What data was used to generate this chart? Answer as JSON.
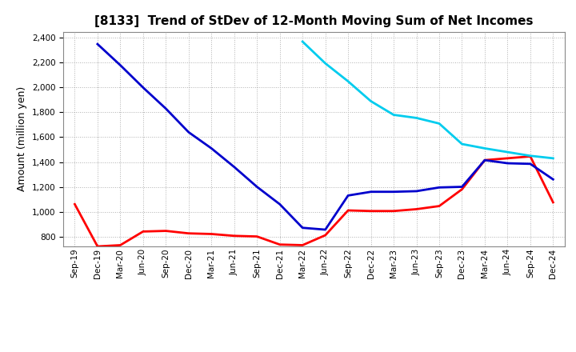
{
  "title": "[8133]  Trend of StDev of 12-Month Moving Sum of Net Incomes",
  "ylabel": "Amount (million yen)",
  "ylim": [
    720,
    2450
  ],
  "yticks": [
    800,
    1000,
    1200,
    1400,
    1600,
    1800,
    2000,
    2200,
    2400
  ],
  "background_color": "#ffffff",
  "grid_color": "#b0b0b0",
  "series": {
    "3years": {
      "color": "#ff0000",
      "x": [
        "Sep-19",
        "Dec-19",
        "Mar-20",
        "Jun-20",
        "Sep-20",
        "Dec-20",
        "Mar-21",
        "Jun-21",
        "Sep-21",
        "Dec-21",
        "Mar-22",
        "Jun-22",
        "Sep-22",
        "Dec-22",
        "Mar-23",
        "Jun-23",
        "Sep-23",
        "Dec-23",
        "Mar-24",
        "Jun-24",
        "Sep-24",
        "Dec-24"
      ],
      "y": [
        1060,
        720,
        730,
        840,
        845,
        825,
        820,
        805,
        800,
        735,
        730,
        810,
        1010,
        1005,
        1005,
        1020,
        1045,
        1180,
        1415,
        1430,
        1445,
        1075
      ]
    },
    "5years": {
      "color": "#0000cc",
      "x": [
        "Dec-19",
        "Mar-20",
        "Jun-20",
        "Sep-20",
        "Dec-20",
        "Mar-21",
        "Jun-21",
        "Sep-21",
        "Dec-21",
        "Mar-22",
        "Jun-22",
        "Sep-22",
        "Dec-22",
        "Mar-23",
        "Jun-23",
        "Sep-23",
        "Dec-23",
        "Mar-24",
        "Jun-24",
        "Sep-24",
        "Dec-24"
      ],
      "y": [
        2350,
        2180,
        2000,
        1830,
        1640,
        1510,
        1360,
        1200,
        1060,
        870,
        855,
        1130,
        1160,
        1160,
        1165,
        1195,
        1200,
        1415,
        1390,
        1385,
        1260
      ]
    },
    "7years": {
      "color": "#00ccee",
      "x": [
        "Mar-22",
        "Jun-22",
        "Sep-22",
        "Dec-22",
        "Mar-23",
        "Jun-23",
        "Sep-23",
        "Dec-23",
        "Mar-24",
        "Jun-24",
        "Sep-24",
        "Dec-24"
      ],
      "y": [
        2370,
        2195,
        2050,
        1890,
        1780,
        1755,
        1710,
        1545,
        1510,
        1480,
        1450,
        1430
      ]
    },
    "10years": {
      "color": "#008000",
      "x": [],
      "y": []
    }
  },
  "xtick_labels": [
    "Sep-19",
    "Dec-19",
    "Mar-20",
    "Jun-20",
    "Sep-20",
    "Dec-20",
    "Mar-21",
    "Jun-21",
    "Sep-21",
    "Dec-21",
    "Mar-22",
    "Jun-22",
    "Sep-22",
    "Dec-22",
    "Mar-23",
    "Jun-23",
    "Sep-23",
    "Dec-23",
    "Mar-24",
    "Jun-24",
    "Sep-24",
    "Dec-24"
  ],
  "title_fontsize": 11,
  "tick_fontsize": 7.5,
  "label_fontsize": 9,
  "legend_fontsize": 9
}
